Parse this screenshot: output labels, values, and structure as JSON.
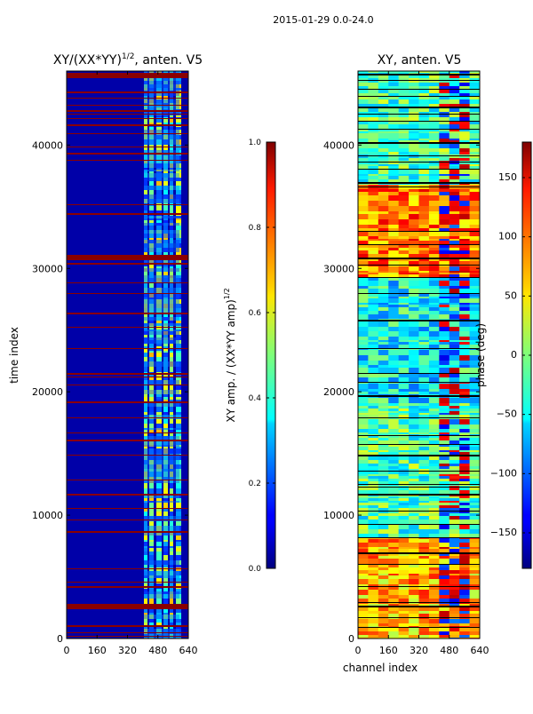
{
  "suptitle": "2015-01-29 0.0-24.0",
  "chart_data": [
    {
      "type": "heatmap",
      "title_main": "XY/(XX*YY)",
      "title_exp": "1/2",
      "title_tail": ", anten. V5",
      "xlabel": "",
      "ylabel": "time index",
      "xlim": [
        0,
        640
      ],
      "ylim": [
        0,
        46000
      ],
      "xticks": [
        0,
        160,
        320,
        480,
        640
      ],
      "yticks": [
        0,
        10000,
        20000,
        30000,
        40000
      ],
      "colorbar": {
        "label_main": "XY amp. / (XX*YY amp)",
        "label_exp": "1/2",
        "range": [
          0,
          1
        ],
        "ticks": [
          "0.0",
          "0.2",
          "0.4",
          "0.6",
          "0.8",
          "1.0"
        ]
      }
    },
    {
      "type": "heatmap",
      "title": "XY, anten. V5",
      "xlabel": "channel index",
      "ylabel": "",
      "xlim": [
        0,
        640
      ],
      "ylim": [
        0,
        46000
      ],
      "xticks": [
        0,
        160,
        320,
        480,
        640
      ],
      "yticks": [
        0,
        10000,
        20000,
        30000,
        40000
      ],
      "colorbar": {
        "label": "phase (deg)",
        "range": [
          -180,
          180
        ],
        "ticks": [
          -150,
          -100,
          -50,
          0,
          50,
          100,
          150
        ]
      }
    }
  ]
}
